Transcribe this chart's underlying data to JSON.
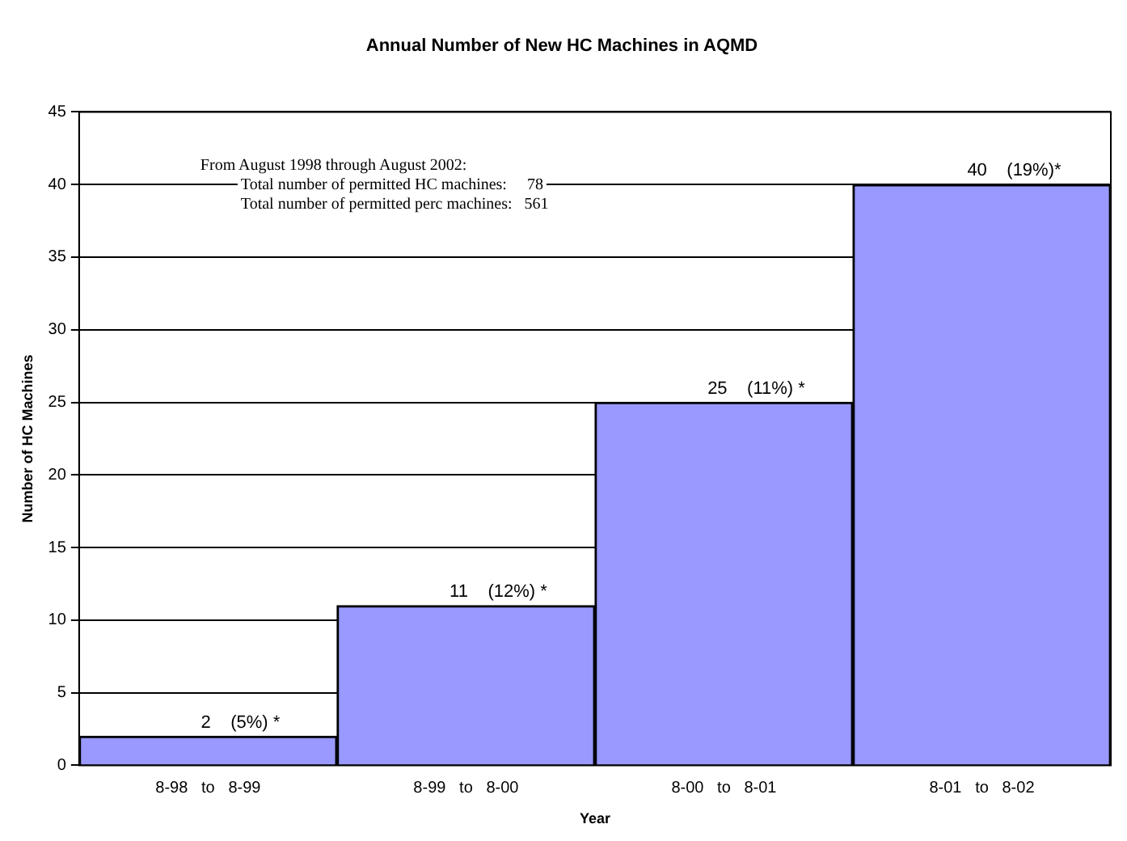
{
  "chart_data": {
    "type": "bar",
    "title": "Annual Number of New HC Machines in AQMD",
    "xlabel": "Year",
    "ylabel": "Number of HC Machines",
    "categories": [
      "8-98   to   8-99",
      "8-99   to   8-00",
      "8-00   to   8-01",
      "8-01   to   8-02"
    ],
    "values": [
      2,
      11,
      25,
      40
    ],
    "color": "#9999ff",
    "value_labels": [
      "2    (5%) *",
      "11    (12%) *",
      "25    (11%) *",
      "40    (19%)*"
    ],
    "ylim": [
      0,
      45
    ],
    "yticks": [
      0,
      5,
      10,
      15,
      20,
      25,
      30,
      35,
      40,
      45
    ],
    "grid": "y",
    "legend": false,
    "annotations": [
      "From August 1998 through August 2002:",
      "Total number of permitted HC machines:     78",
      "Total number of permitted perc machines:   561"
    ]
  }
}
